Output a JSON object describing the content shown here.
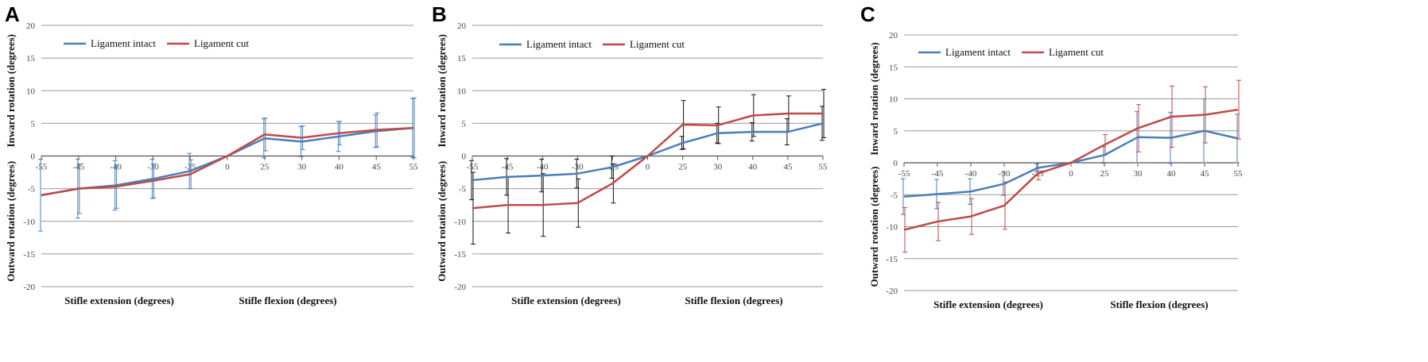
{
  "chart_data": [
    {
      "panel": "A",
      "type": "line",
      "x": [
        -55,
        -45,
        -40,
        -30,
        -25,
        0,
        25,
        30,
        40,
        45,
        55
      ],
      "x_tick_labels": [
        "-55",
        "-45",
        "-40",
        "-30",
        "-25",
        "0",
        "25",
        "30",
        "40",
        "45",
        "55"
      ],
      "ylim": [
        -20,
        20
      ],
      "y_ticks": [
        -20,
        -15,
        -10,
        -5,
        0,
        5,
        10,
        15,
        20
      ],
      "ylabel_upper": "Inward rotation (degrees)",
      "ylabel_lower": "Outward rotation (degrees)",
      "xlabel_left": "Stifle extension (degrees)",
      "xlabel_right": "Stifle flexion (degrees)",
      "grid": true,
      "legend_position": "top-left",
      "series": [
        {
          "name": "Ligament intact",
          "color": "#4a7ebb",
          "values": [
            -6.0,
            -5.0,
            -4.5,
            -3.5,
            -2.3,
            0,
            2.7,
            2.2,
            3.0,
            3.8,
            4.3
          ],
          "err": [
            5.5,
            4.5,
            3.8,
            3.0,
            2.7,
            0,
            3.0,
            2.3,
            2.3,
            2.5,
            4.5
          ]
        },
        {
          "name": "Ligament cut",
          "color": "#be4b48",
          "values": [
            -6.0,
            -5.0,
            -4.7,
            -3.8,
            -2.8,
            0,
            3.3,
            2.8,
            3.5,
            4.0,
            4.3
          ],
          "err": [
            0,
            3.8,
            3.3,
            2.6,
            2.2,
            0,
            2.5,
            1.8,
            1.8,
            2.6,
            4.6
          ]
        }
      ]
    },
    {
      "panel": "B",
      "type": "line",
      "x": [
        -55,
        -45,
        -40,
        -30,
        -25,
        0,
        25,
        30,
        40,
        45,
        55
      ],
      "x_tick_labels": [
        "-55",
        "-45",
        "-40",
        "-30",
        "-25",
        "0",
        "25",
        "30",
        "40",
        "45",
        "55"
      ],
      "ylim": [
        -20,
        20
      ],
      "y_ticks": [
        -20,
        -15,
        -10,
        -5,
        0,
        5,
        10,
        15,
        20
      ],
      "ylabel_upper": "Inward rotation (degrees)",
      "ylabel_lower": "Outward rotation (degrees)",
      "xlabel_left": "Stifle extension (degrees)",
      "xlabel_right": "Stifle flexion (degrees)",
      "grid": true,
      "legend_position": "top-left",
      "series": [
        {
          "name": "Ligament intact",
          "color": "#4a7ebb",
          "values": [
            -3.7,
            -3.2,
            -3.0,
            -2.7,
            -1.7,
            0,
            2.0,
            3.5,
            3.7,
            3.7,
            5.0
          ],
          "err": [
            3.0,
            2.8,
            2.5,
            2.2,
            1.7,
            0,
            1.0,
            1.5,
            1.4,
            2.0,
            2.6
          ]
        },
        {
          "name": "Ligament cut",
          "color": "#be4b48",
          "values": [
            -8.0,
            -7.5,
            -7.5,
            -7.2,
            -4.2,
            0,
            4.8,
            4.7,
            6.2,
            6.5,
            6.5
          ],
          "err": [
            5.5,
            4.3,
            4.8,
            3.7,
            3.0,
            0,
            3.7,
            2.8,
            3.2,
            2.7,
            3.7
          ]
        }
      ]
    },
    {
      "panel": "C",
      "type": "line",
      "x": [
        -55,
        -45,
        -40,
        -30,
        -25,
        0,
        25,
        30,
        40,
        45,
        55
      ],
      "x_tick_labels": [
        "-55",
        "-45",
        "-40",
        "-30",
        "-25",
        "0",
        "25",
        "30",
        "40",
        "45",
        "55"
      ],
      "ylim": [
        -20,
        20
      ],
      "y_ticks": [
        -20,
        -15,
        -10,
        -5,
        0,
        5,
        10,
        15,
        20
      ],
      "ylabel_upper": "Inward rotation (degrees)",
      "ylabel_lower": "Outward rotation (degrees)",
      "xlabel_left": "Stifle extension (degrees)",
      "xlabel_right": "Stifle flexion (degrees)",
      "grid": true,
      "legend_position": "top-left",
      "series": [
        {
          "name": "Ligament intact",
          "color": "#4a7ebb",
          "values": [
            -5.3,
            -4.9,
            -4.5,
            -3.3,
            -0.8,
            0,
            1.2,
            4.0,
            3.9,
            5.0,
            3.8
          ],
          "err": [
            2.8,
            2.3,
            2.0,
            1.8,
            0.6,
            0,
            1.3,
            4.0,
            4.0,
            5.0,
            3.8
          ]
        },
        {
          "name": "Ligament cut",
          "color": "#be4b48",
          "values": [
            -10.5,
            -9.2,
            -8.4,
            -6.7,
            -1.7,
            0,
            2.8,
            5.4,
            7.2,
            7.5,
            8.3
          ],
          "err": [
            3.5,
            3.0,
            2.8,
            3.7,
            1.0,
            0,
            1.6,
            3.7,
            4.8,
            4.4,
            4.6
          ]
        }
      ]
    }
  ]
}
